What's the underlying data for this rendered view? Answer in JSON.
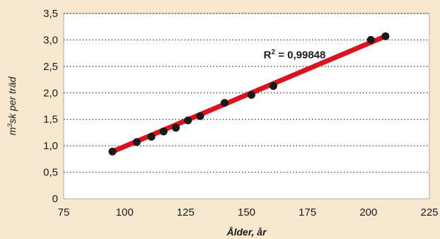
{
  "chart_data": {
    "type": "scatter",
    "title": "",
    "xlabel": "Ålder, år",
    "ylabel_parts": {
      "pre": "m",
      "sup": "3",
      "post": "sk per träd"
    },
    "xlim": [
      75,
      225
    ],
    "ylim": [
      0,
      3.5
    ],
    "x_ticks": [
      75,
      100,
      125,
      150,
      175,
      200,
      225
    ],
    "y_ticks": [
      0,
      0.5,
      1.0,
      1.5,
      2.0,
      2.5,
      3.0,
      3.5
    ],
    "x_tick_labels": [
      "75",
      "100",
      "125",
      "150",
      "175",
      "200",
      "225"
    ],
    "y_tick_labels": [
      "0",
      "0,5",
      "1,0",
      "1,5",
      "2,0",
      "2,5",
      "3,0",
      "3,5"
    ],
    "grid": "horizontal dotted",
    "series": [
      {
        "x": [
          95,
          105,
          111,
          116,
          121,
          126,
          131,
          141,
          152,
          161,
          201,
          207
        ],
        "y": [
          0.89,
          1.07,
          1.17,
          1.27,
          1.34,
          1.48,
          1.56,
          1.81,
          1.96,
          2.13,
          3.0,
          3.07
        ]
      }
    ],
    "trendline": {
      "x": [
        95,
        207
      ],
      "y": [
        0.89,
        3.07
      ]
    },
    "annotation": {
      "pre": "R",
      "sup": "2",
      "post": " = 0,99848"
    },
    "colors": {
      "background": "#f7e8cf",
      "plot_area": "#ffffff",
      "trendline": "#d9141e",
      "points": "#1a1a1a",
      "grid": "#333333"
    }
  }
}
